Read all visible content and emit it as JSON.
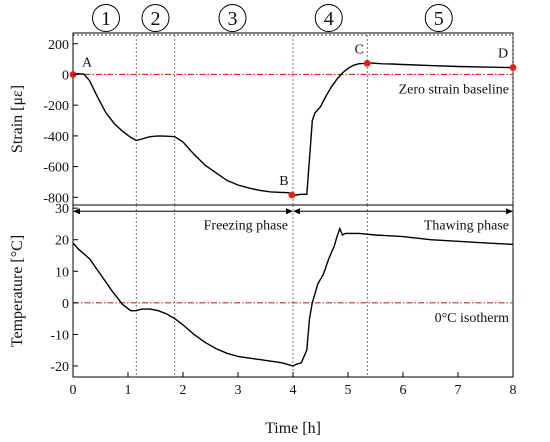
{
  "chart_data": [
    {
      "type": "line",
      "panel": "top",
      "ylabel": "Strain [με]",
      "ylim": [
        -850,
        270
      ],
      "yticks": [
        -800,
        -600,
        -400,
        -200,
        0,
        200
      ],
      "xlim": [
        0,
        8
      ],
      "baseline": {
        "y": 0,
        "label": "Zero strain baseline"
      },
      "series": [
        {
          "x": [
            0,
            0.1,
            0.2,
            0.3,
            0.45,
            0.6,
            0.75,
            0.9,
            1.05,
            1.15,
            1.25,
            1.4,
            1.55,
            1.7,
            1.85,
            2.0,
            2.2,
            2.4,
            2.6,
            2.8,
            3.0,
            3.2,
            3.4,
            3.6,
            3.8,
            3.92,
            3.98,
            4.05,
            4.15,
            4.25,
            4.3,
            4.35,
            4.4,
            4.5,
            4.6,
            4.7,
            4.8,
            4.9,
            5.0,
            5.1,
            5.2,
            5.3,
            5.4,
            5.6,
            5.8,
            6.0,
            6.5,
            7.0,
            7.5,
            8.0
          ],
          "y": [
            0,
            5,
            2,
            -40,
            -150,
            -250,
            -320,
            -370,
            -410,
            -430,
            -420,
            -405,
            -400,
            -402,
            -405,
            -440,
            -520,
            -590,
            -640,
            -690,
            -720,
            -740,
            -755,
            -765,
            -768,
            -770,
            -785,
            -785,
            -780,
            -780,
            -550,
            -300,
            -250,
            -210,
            -140,
            -80,
            -30,
            10,
            40,
            60,
            70,
            72,
            75,
            70,
            68,
            65,
            58,
            52,
            48,
            45
          ]
        }
      ],
      "points": [
        {
          "label": "A",
          "x": 0,
          "y": 0
        },
        {
          "label": "B",
          "x": 3.98,
          "y": -785
        },
        {
          "label": "C",
          "x": 5.35,
          "y": 72
        },
        {
          "label": "D",
          "x": 8.0,
          "y": 45
        }
      ]
    },
    {
      "type": "line",
      "panel": "bottom",
      "ylabel": "Temperature [°C]",
      "xlabel": "Time [h]",
      "ylim": [
        -23.5,
        31
      ],
      "yticks": [
        -20,
        -10,
        0,
        10,
        20,
        30
      ],
      "xlim": [
        0,
        8
      ],
      "xticks": [
        0,
        1,
        2,
        3,
        4,
        5,
        6,
        7,
        8
      ],
      "baseline": {
        "y": 0,
        "label": "0°C isotherm"
      },
      "series": [
        {
          "x": [
            0,
            0.1,
            0.3,
            0.5,
            0.7,
            0.9,
            1.05,
            1.15,
            1.25,
            1.4,
            1.55,
            1.7,
            1.85,
            2.0,
            2.2,
            2.4,
            2.6,
            2.8,
            3.0,
            3.2,
            3.4,
            3.6,
            3.8,
            3.9,
            4.0,
            4.05,
            4.15,
            4.25,
            4.3,
            4.35,
            4.45,
            4.55,
            4.65,
            4.75,
            4.8,
            4.85,
            4.9,
            4.95,
            5.0,
            5.2,
            5.5,
            6.0,
            6.5,
            7.0,
            7.5,
            8.0
          ],
          "y": [
            19,
            17,
            14,
            9,
            4,
            -0.5,
            -2.5,
            -2.5,
            -2,
            -2,
            -2.5,
            -3.5,
            -5,
            -7,
            -10,
            -12.5,
            -14.5,
            -16,
            -17,
            -17.5,
            -18,
            -18.5,
            -19,
            -19.5,
            -20,
            -19.5,
            -19,
            -15,
            -5,
            0,
            6,
            9,
            14,
            18,
            21,
            23.5,
            21.5,
            22,
            22,
            22,
            21.5,
            21,
            20,
            19.5,
            19,
            18.5
          ]
        }
      ],
      "phases": [
        {
          "label": "Freezing phase",
          "x_start": 0,
          "x_end": 4
        },
        {
          "label": "Thawing phase",
          "x_start": 4,
          "x_end": 8
        }
      ]
    }
  ],
  "stage_markers": {
    "labels": [
      "1",
      "2",
      "3",
      "4",
      "5"
    ],
    "x_centers": [
      0.6,
      1.5,
      2.9,
      4.65,
      6.65
    ],
    "boundaries_h": [
      1.15,
      1.85,
      4.0,
      5.35,
      8.0
    ]
  }
}
